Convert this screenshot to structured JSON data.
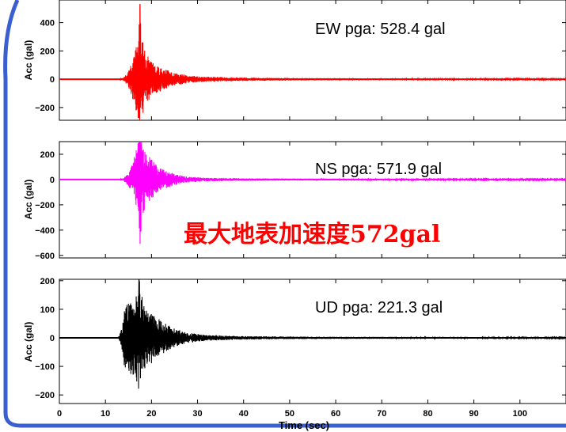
{
  "colors": {
    "frame_blue": "#3a5fd0",
    "annotation_red": "#ff0000"
  },
  "annotation": {
    "text": "最大地表加速度572gal"
  },
  "chart_data": [
    {
      "type": "line",
      "series": [
        {
          "name": "EW",
          "color": "#ff0000"
        }
      ],
      "pga_label": "EW pga: 528.4 gal",
      "pga": 528.4,
      "peak_time": 17.5,
      "ylabel": "Acc (gal)",
      "ylim": [
        -290,
        560
      ],
      "yticks": [
        -200,
        0,
        200,
        400
      ],
      "ytick_labels": [
        "−200",
        "0",
        "200",
        "400"
      ],
      "xlim": [
        0,
        110
      ],
      "xticks": [
        0,
        10,
        20,
        30,
        40,
        50,
        60,
        70,
        80,
        90,
        100
      ],
      "envelope": [
        [
          0,
          0
        ],
        [
          13,
          0
        ],
        [
          14,
          12
        ],
        [
          15,
          55
        ],
        [
          16,
          150
        ],
        [
          17,
          260
        ],
        [
          17.5,
          528
        ],
        [
          18,
          300
        ],
        [
          18.6,
          200
        ],
        [
          20,
          120
        ],
        [
          22,
          85
        ],
        [
          25,
          45
        ],
        [
          28,
          26
        ],
        [
          32,
          18
        ],
        [
          40,
          12
        ],
        [
          55,
          8
        ],
        [
          80,
          5
        ],
        [
          110,
          4
        ]
      ]
    },
    {
      "type": "line",
      "series": [
        {
          "name": "NS",
          "color": "#ff00ff"
        }
      ],
      "pga_label": "NS pga: 571.9 gal",
      "pga": 571.9,
      "peak_time": 17.6,
      "ylabel": "Acc (gal)",
      "ylim": [
        -620,
        300
      ],
      "yticks": [
        -600,
        -400,
        -200,
        0,
        200
      ],
      "ytick_labels": [
        "−600",
        "−400",
        "−200",
        "0",
        "200"
      ],
      "xlim": [
        0,
        110
      ],
      "xticks": [
        0,
        10,
        20,
        30,
        40,
        50,
        60,
        70,
        80,
        90,
        100
      ],
      "envelope": [
        [
          0,
          0
        ],
        [
          13,
          0
        ],
        [
          14,
          12
        ],
        [
          15,
          50
        ],
        [
          16,
          140
        ],
        [
          17,
          280
        ],
        [
          17.6,
          572
        ],
        [
          18,
          290
        ],
        [
          18.8,
          220
        ],
        [
          20,
          160
        ],
        [
          22,
          90
        ],
        [
          25,
          45
        ],
        [
          28,
          22
        ],
        [
          32,
          14
        ],
        [
          40,
          10
        ],
        [
          55,
          7
        ],
        [
          80,
          5
        ],
        [
          110,
          4
        ]
      ]
    },
    {
      "type": "line",
      "series": [
        {
          "name": "UD",
          "color": "#000000"
        }
      ],
      "pga_label": "UD pga: 221.3 gal",
      "pga": 221.3,
      "peak_time": 17.3,
      "ylabel": "Acc (gal)",
      "xlabel": "Time (sec)",
      "ylim": [
        -230,
        205
      ],
      "yticks": [
        -200,
        -100,
        0,
        100,
        200
      ],
      "ytick_labels": [
        "−200",
        "−100",
        "0",
        "100",
        "200"
      ],
      "xlim": [
        0,
        110
      ],
      "xticks": [
        0,
        10,
        20,
        30,
        40,
        50,
        60,
        70,
        80,
        90,
        100
      ],
      "xtick_labels": [
        "0",
        "10",
        "20",
        "30",
        "40",
        "50",
        "60",
        "70",
        "80",
        "90",
        "100"
      ],
      "envelope": [
        [
          0,
          0
        ],
        [
          12.8,
          0
        ],
        [
          13.5,
          30
        ],
        [
          14,
          95
        ],
        [
          15,
          125
        ],
        [
          16,
          130
        ],
        [
          17,
          160
        ],
        [
          17.3,
          221
        ],
        [
          17.8,
          170
        ],
        [
          18.5,
          110
        ],
        [
          20,
          90
        ],
        [
          22,
          60
        ],
        [
          25,
          32
        ],
        [
          28,
          18
        ],
        [
          32,
          10
        ],
        [
          40,
          6
        ],
        [
          55,
          4
        ],
        [
          80,
          3
        ],
        [
          110,
          2
        ]
      ]
    }
  ]
}
